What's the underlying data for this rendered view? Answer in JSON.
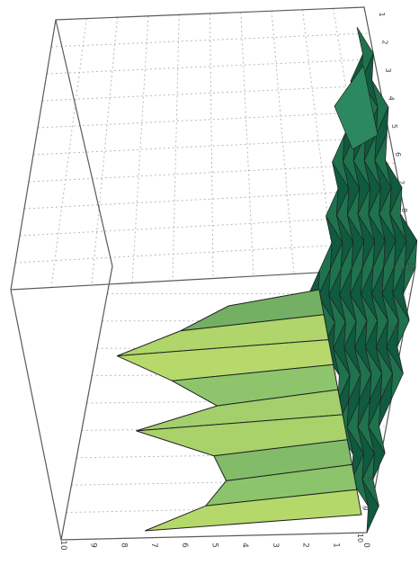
{
  "chart_data": {
    "type": "surface",
    "title": "",
    "grid": true,
    "legend": "none",
    "orientation": "rotated 90 degrees clockwise",
    "axes": {
      "left_ticks": [
        "10",
        "9",
        "8",
        "7",
        "6",
        "5",
        "4",
        "3",
        "2",
        "1",
        "0"
      ],
      "right_ticks": [
        "1",
        "2",
        "3",
        "4",
        "5",
        "6",
        "7",
        "8",
        "9",
        "10"
      ],
      "bottom_ticks": [
        "1",
        "2",
        "3",
        "4",
        "5",
        "6",
        "7",
        "8",
        "9",
        "10"
      ],
      "z_range": [
        0,
        10
      ]
    },
    "surface": {
      "floor_rows": 10,
      "floor_cols": 9,
      "floor_value": 1,
      "plateau_height": [
        3.6,
        5.7,
        8.4,
        6.4,
        4.8,
        8.2,
        5.3,
        5.0,
        6.0,
        8.6
      ],
      "plateau_extent": 7,
      "peak_near_far_corner": 3.2
    },
    "colors": {
      "low": "#0f5b3f",
      "high": "#f3f66a",
      "grid": "#b9b9b9",
      "box": "#5a5a5a",
      "mesh_line": "#222222"
    }
  }
}
